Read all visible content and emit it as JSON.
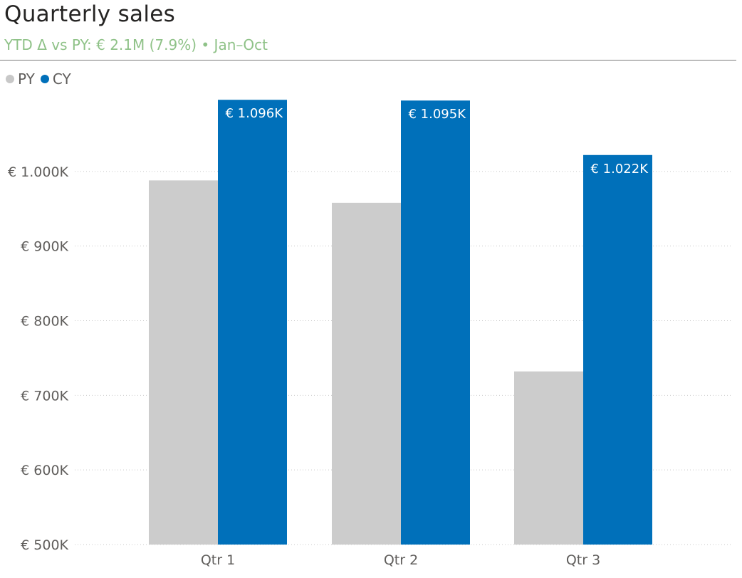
{
  "header": {
    "title": "Quarterly sales",
    "subtitle": "YTD Δ vs PY: € 2.1M (7.9%) • Jan–Oct"
  },
  "legend": [
    {
      "label": "PY",
      "color": "#c8c8c8"
    },
    {
      "label": "CY",
      "color": "#0070ba"
    }
  ],
  "colors": {
    "py": "#cccccc",
    "cy": "#0070ba",
    "subtitle": "#8fc288",
    "grid": "#c8c8c8"
  },
  "chart_data": {
    "type": "bar",
    "title": "Quarterly sales",
    "subtitle": "YTD Δ vs PY: € 2.1M (7.9%) • Jan–Oct",
    "categories": [
      "Qtr 1",
      "Qtr 2",
      "Qtr 3"
    ],
    "series": [
      {
        "name": "PY",
        "values": [
          988,
          958,
          732
        ],
        "data_labels": [
          "",
          "",
          ""
        ]
      },
      {
        "name": "CY",
        "values": [
          1096,
          1095,
          1022
        ],
        "data_labels": [
          "€ 1.096K",
          "€ 1.095K",
          "€ 1.022K"
        ]
      }
    ],
    "units": "K EUR",
    "ylim": [
      500,
      1100
    ],
    "yticks": [
      500,
      600,
      700,
      800,
      900,
      1000
    ],
    "ytick_labels": [
      "€ 500K",
      "€ 600K",
      "€ 700K",
      "€ 800K",
      "€ 900K",
      "€ 1.000K"
    ],
    "xlabel": "",
    "ylabel": "",
    "grid": true,
    "legend_position": "top-left"
  }
}
